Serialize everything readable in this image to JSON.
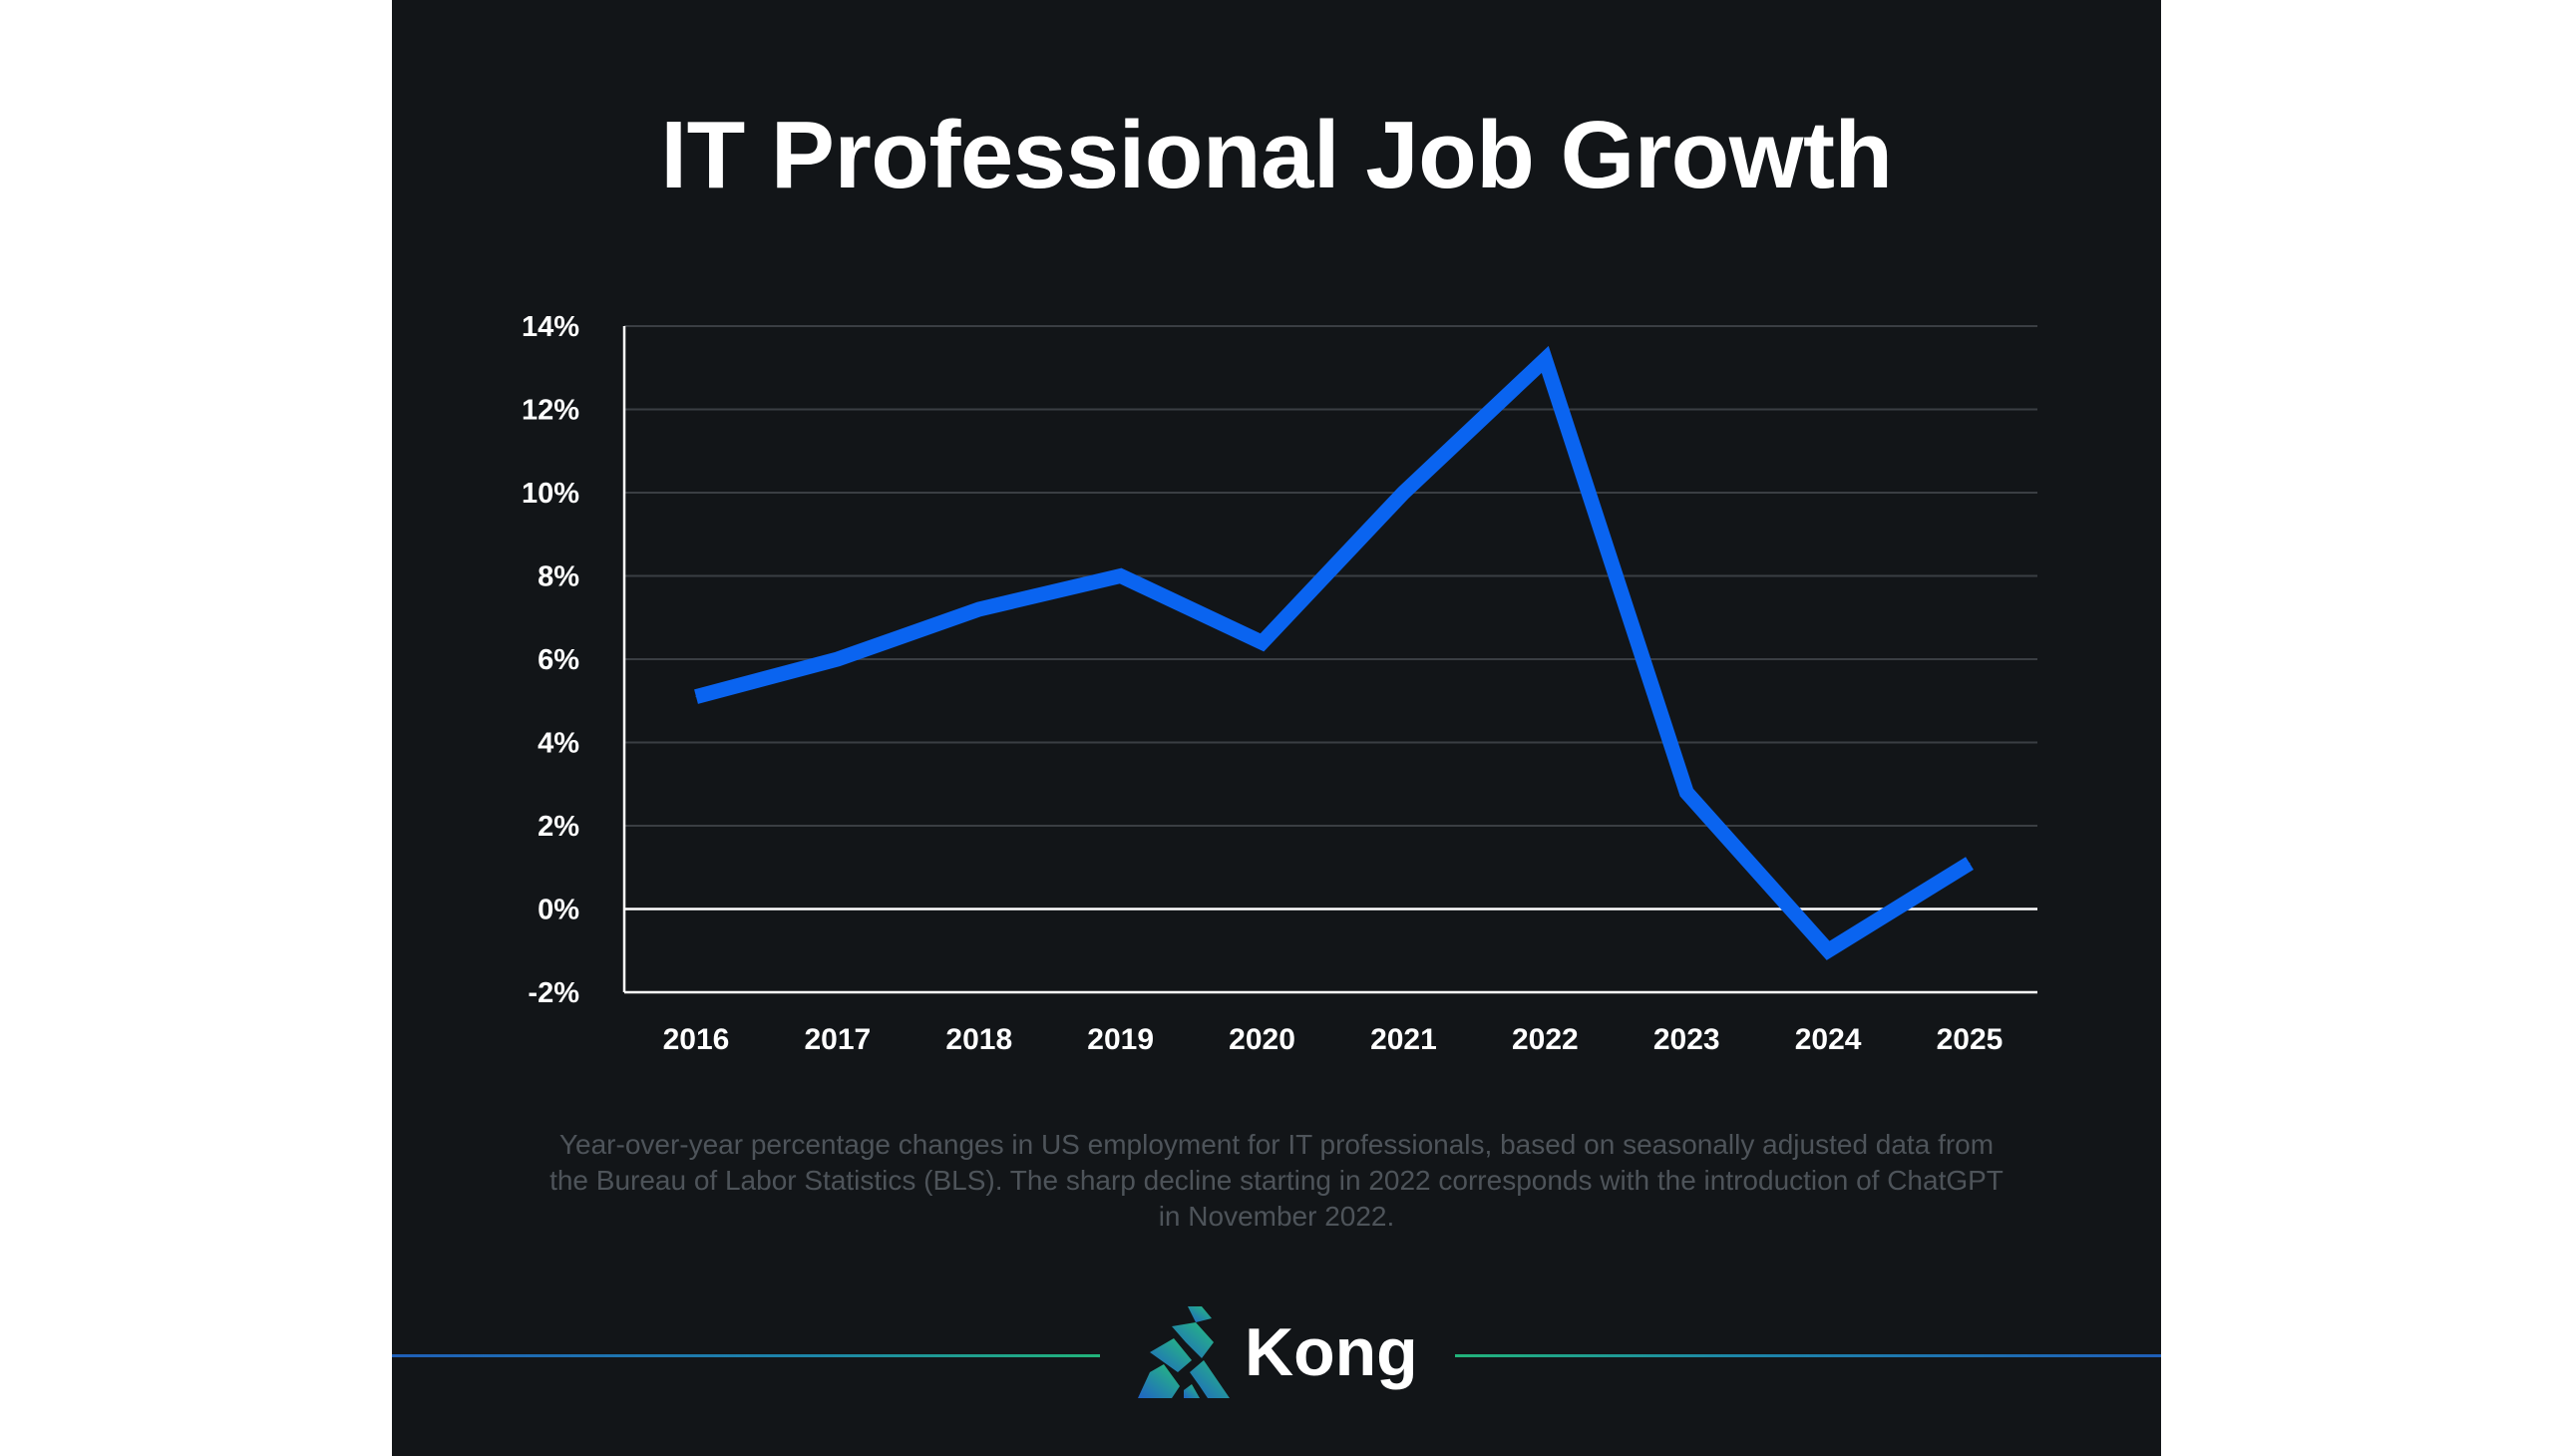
{
  "chart_data": {
    "type": "line",
    "title": "IT Professional Job Growth",
    "x": [
      "2016",
      "2017",
      "2018",
      "2019",
      "2020",
      "2021",
      "2022",
      "2023",
      "2024",
      "2025"
    ],
    "series": [
      {
        "values": [
          5.1,
          6.0,
          7.2,
          8.0,
          6.4,
          10.0,
          13.2,
          2.8,
          -1.0,
          1.1
        ]
      }
    ],
    "y_ticks": [
      "14%",
      "12%",
      "10%",
      "8%",
      "6%",
      "4%",
      "2%",
      "0%",
      "-2%"
    ],
    "ylim": [
      -2,
      14
    ],
    "grid": true,
    "legend": "none"
  },
  "caption": "Year-over-year percentage changes in US employment for IT professionals, based on seasonally adjusted data from the Bureau of Labor Statistics (BLS). The sharp decline starting in 2022 corresponds with the introduction of ChatGPT in November 2022.",
  "brand": {
    "name": "Kong",
    "logo_icon": "kong-gorilla-icon"
  },
  "colors": {
    "background": "#121518",
    "line": "#0a64f0",
    "grid": "#3a3e43",
    "axis": "#ffffff",
    "caption": "#4e545a"
  }
}
